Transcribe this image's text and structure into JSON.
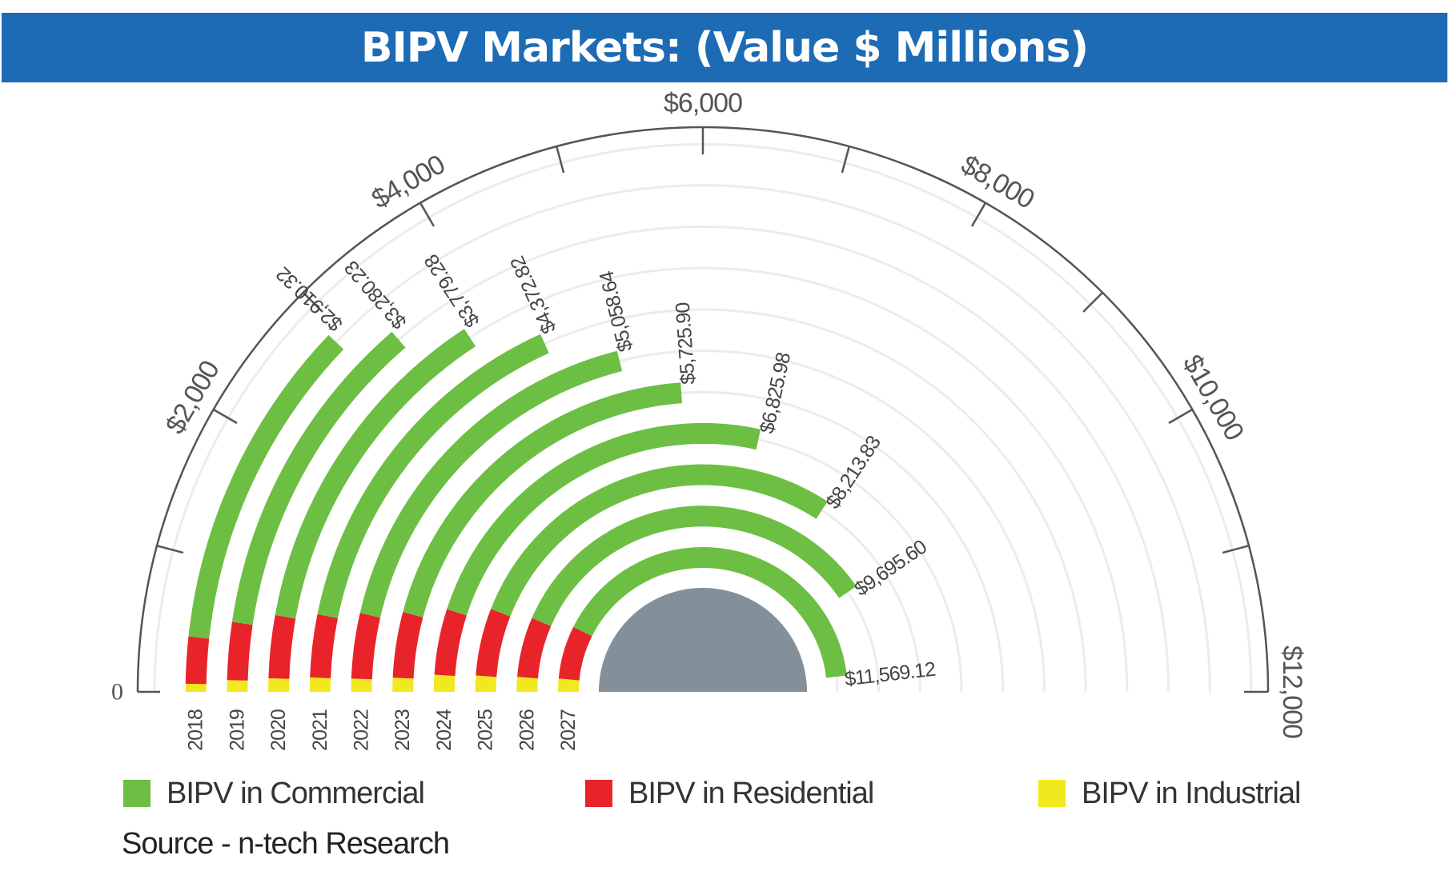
{
  "title": "BIPV Markets: (Value $ Millions)",
  "source": "Source - n-tech Research",
  "colors": {
    "commercial": "#6cbf43",
    "residential": "#e8242a",
    "industrial": "#f2e81f",
    "hub": "#838f99",
    "title_bg": "#1d6bb5"
  },
  "legend": [
    {
      "label": "BIPV in Commercial",
      "color": "#6cbf43"
    },
    {
      "label": "BIPV in Residential",
      "color": "#e8242a"
    },
    {
      "label": "BIPV in Industrial",
      "color": "#f2e81f"
    }
  ],
  "chart_data": {
    "type": "bar",
    "subtype": "radial stacked bar",
    "title": "BIPV Markets: (Value $ Millions)",
    "value_axis": {
      "range": [
        0,
        12000
      ],
      "zero_label": "0",
      "tick_labels": [
        {
          "value": 2000,
          "label": "$2,000"
        },
        {
          "value": 4000,
          "label": "$4,000"
        },
        {
          "value": 6000,
          "label": "$6,000"
        },
        {
          "value": 8000,
          "label": "$8,000"
        },
        {
          "value": 10000,
          "label": "$10,000"
        },
        {
          "value": 12000,
          "label": "$12,000"
        }
      ],
      "minor_ticks": [
        1000,
        3000,
        5000,
        7000,
        9000,
        11000
      ]
    },
    "categories": [
      "2018",
      "2019",
      "2020",
      "2021",
      "2022",
      "2023",
      "2024",
      "2025",
      "2026",
      "2027"
    ],
    "totals": [
      2910.32,
      3280.23,
      3779.28,
      4372.82,
      5058.64,
      5725.9,
      6825.98,
      8213.83,
      9695.6,
      11569.12
    ],
    "total_labels": [
      "$2,910.32",
      "$3,280.23",
      "$3,779.28",
      "$4,372.82",
      "$5,058.64",
      "$5,725.90",
      "$6,825.98",
      "$8,213.83",
      "$9,695.60",
      "$11,569.12"
    ],
    "series": [
      {
        "name": "BIPV in Industrial",
        "values": [
          60,
          95,
          120,
          140,
          145,
          175,
          245,
          275,
          310,
          355
        ]
      },
      {
        "name": "BIPV in Residential",
        "values": [
          350,
          470,
          560,
          620,
          720,
          820,
          950,
          1150,
          1250,
          1420
        ]
      },
      {
        "name": "BIPV in Commercial",
        "values": [
          2500.32,
          2715.23,
          3099.28,
          3612.82,
          4193.64,
          4730.9,
          5630.98,
          6788.83,
          8135.6,
          9794.12
        ]
      }
    ],
    "grid": true,
    "legend_position": "bottom"
  }
}
